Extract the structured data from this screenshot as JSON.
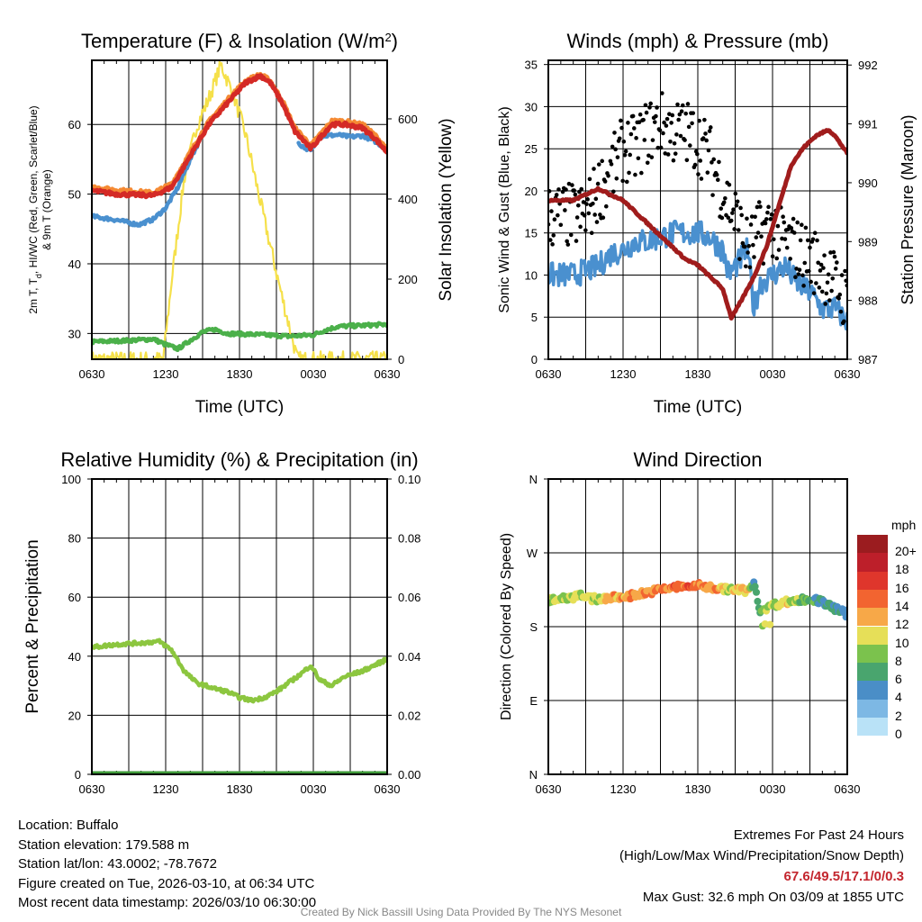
{
  "chart_data": [
    {
      "type": "line",
      "title": "Temperature (F) & Insolation (W/m",
      "title_sup": "2",
      "title_end": ")",
      "xlabel": "Time (UTC)",
      "ylabel_a": "2m T, T",
      "ylabel_sub": "d",
      "ylabel_b": ", HI/WC (Red, Green, Scarlet/Blue)",
      "ylabel_line2": "& 9m T (Orange)",
      "y2label": "Solar Insolation (Yellow)",
      "xlim": [
        0,
        24
      ],
      "xticks": [
        {
          "h": 0,
          "label": "0630"
        },
        {
          "h": 6,
          "label": "1230"
        },
        {
          "h": 12,
          "label": "1830"
        },
        {
          "h": 18,
          "label": "0030"
        },
        {
          "h": 24,
          "label": "0630"
        }
      ],
      "ylim": [
        26.3,
        69.2
      ],
      "yticks": [
        30,
        40,
        50,
        60
      ],
      "y2lim": [
        0,
        746
      ],
      "y2ticks": [
        0,
        200,
        400,
        600
      ],
      "series": [
        {
          "name": "Solar Insolation",
          "color": "#f5e04a",
          "axis": "right",
          "width": 2.2,
          "points": [
            [
              0,
              0
            ],
            [
              5.8,
              0
            ],
            [
              6.5,
              200
            ],
            [
              7.5,
              450
            ],
            [
              8.5,
              580
            ],
            [
              9.5,
              650
            ],
            [
              10.5,
              735
            ],
            [
              11.5,
              660
            ],
            [
              12.5,
              560
            ],
            [
              14,
              350
            ],
            [
              15.5,
              150
            ],
            [
              16.7,
              0
            ],
            [
              24,
              0
            ]
          ]
        },
        {
          "name": "HI/WC",
          "color": "#4bb04a",
          "axis": "left",
          "width": 4.5,
          "points": [
            [
              0,
              28.8
            ],
            [
              3,
              29
            ],
            [
              5,
              29.2
            ],
            [
              6,
              28.4
            ],
            [
              7,
              27.8
            ],
            [
              8,
              29
            ],
            [
              9,
              30.2
            ],
            [
              10,
              30.6
            ],
            [
              11,
              30
            ],
            [
              14,
              29.8
            ],
            [
              16,
              29.6
            ],
            [
              18,
              29.8
            ],
            [
              19,
              30.5
            ],
            [
              20,
              31
            ],
            [
              24,
              31.3
            ]
          ]
        },
        {
          "name": "Dewpoint",
          "color": "#4a90cf",
          "axis": "left",
          "width": 4.5,
          "points": [
            [
              0,
              46.8
            ],
            [
              2,
              46.3
            ],
            [
              3.8,
              45.6
            ],
            [
              5,
              46.4
            ],
            [
              6,
              48
            ],
            [
              7,
              51
            ],
            [
              8,
              55
            ],
            [
              8.7,
              57.5
            ]
          ],
          "points2": [
            [
              16.8,
              57.2
            ],
            [
              17.8,
              56.2
            ],
            [
              18.5,
              58.3
            ],
            [
              20,
              58.5
            ],
            [
              21,
              58.2
            ],
            [
              22,
              58.4
            ],
            [
              23,
              57.6
            ],
            [
              24,
              56.4
            ]
          ]
        },
        {
          "name": "9m Temperature",
          "color": "#f58a34",
          "axis": "left",
          "width": 4.5,
          "points": [
            [
              0,
              51
            ],
            [
              2,
              50.6
            ],
            [
              5,
              50.2
            ],
            [
              6.5,
              51.5
            ],
            [
              7.5,
              54.5
            ],
            [
              8.5,
              57.5
            ],
            [
              9.5,
              60.4
            ],
            [
              10.5,
              62.5
            ],
            [
              11.5,
              64.5
            ],
            [
              12.5,
              66.3
            ],
            [
              13.7,
              67.2
            ],
            [
              14.5,
              66.3
            ],
            [
              15.5,
              63.4
            ],
            [
              16.5,
              59.5
            ],
            [
              17.3,
              58
            ],
            [
              17.8,
              57
            ],
            [
              18.5,
              58.5
            ],
            [
              19.5,
              60.5
            ],
            [
              20.5,
              60.5
            ],
            [
              22,
              60
            ],
            [
              23,
              58.5
            ],
            [
              24,
              56.5
            ]
          ]
        },
        {
          "name": "2m Temperature",
          "color": "#d42a26",
          "axis": "left",
          "width": 5,
          "points": [
            [
              0,
              50.5
            ],
            [
              2,
              50
            ],
            [
              5,
              49.8
            ],
            [
              6.5,
              51
            ],
            [
              7.5,
              54
            ],
            [
              8.5,
              57
            ],
            [
              9.5,
              60
            ],
            [
              10.5,
              62
            ],
            [
              11.5,
              64
            ],
            [
              12.5,
              66
            ],
            [
              13.7,
              67
            ],
            [
              14.5,
              66
            ],
            [
              15.5,
              63
            ],
            [
              16.5,
              59
            ],
            [
              17.3,
              57.5
            ],
            [
              17.8,
              56.5
            ],
            [
              18.5,
              58
            ],
            [
              19.5,
              60
            ],
            [
              20.5,
              60
            ],
            [
              22,
              59.5
            ],
            [
              23,
              58
            ],
            [
              24,
              56
            ]
          ]
        }
      ]
    },
    {
      "type": "line",
      "title": "Winds (mph) & Pressure (mb)",
      "xlabel": "Time (UTC)",
      "ylabel": "Sonic Wind & Gust (Blue, Black)",
      "y2label": "Station Pressure (Maroon)",
      "xlim": [
        0,
        24
      ],
      "xticks": [
        {
          "h": 0,
          "label": "0630"
        },
        {
          "h": 6,
          "label": "1230"
        },
        {
          "h": 12,
          "label": "1830"
        },
        {
          "h": 18,
          "label": "0030"
        },
        {
          "h": 24,
          "label": "0630"
        }
      ],
      "ylim": [
        0,
        35.5
      ],
      "yticks": [
        0,
        5,
        10,
        15,
        20,
        25,
        30,
        35
      ],
      "y2lim": [
        987,
        992.08
      ],
      "y2ticks": [
        987,
        988,
        989,
        990,
        991,
        992
      ],
      "series": [
        {
          "name": "Sonic Wind",
          "color": "#4a90cf",
          "axis": "left",
          "width": 3.5,
          "points": [
            [
              0,
              10
            ],
            [
              2,
              10
            ],
            [
              3,
              10.5
            ],
            [
              4,
              11
            ],
            [
              5,
              12.5
            ],
            [
              6,
              13
            ],
            [
              7,
              14
            ],
            [
              8,
              14
            ],
            [
              9,
              14.5
            ],
            [
              10,
              15
            ],
            [
              11,
              15
            ],
            [
              12,
              15
            ],
            [
              13,
              14.5
            ],
            [
              14,
              13
            ],
            [
              14.5,
              10
            ],
            [
              15,
              11
            ],
            [
              16,
              13
            ],
            [
              16.5,
              6
            ],
            [
              17,
              9
            ],
            [
              18,
              10
            ],
            [
              19,
              11
            ],
            [
              20,
              9
            ],
            [
              21,
              8
            ],
            [
              22,
              6
            ],
            [
              23,
              6
            ],
            [
              24,
              4.5
            ]
          ]
        },
        {
          "name": "Gust",
          "color": "#000000",
          "axis": "left",
          "kind": "dots",
          "points": [
            [
              0,
              17
            ],
            [
              3,
              17
            ],
            [
              4,
              20
            ],
            [
              5,
              22
            ],
            [
              6,
              25
            ],
            [
              7,
              25
            ],
            [
              8,
              27
            ],
            [
              9,
              28
            ],
            [
              10,
              27
            ],
            [
              11,
              27
            ],
            [
              12,
              26
            ],
            [
              13,
              24
            ],
            [
              14,
              20
            ],
            [
              15,
              17
            ],
            [
              16,
              13
            ],
            [
              17,
              15
            ],
            [
              18,
              16
            ],
            [
              19,
              14
            ],
            [
              20,
              13
            ],
            [
              21,
              12
            ],
            [
              22,
              11
            ],
            [
              23,
              9
            ],
            [
              24,
              7
            ]
          ]
        },
        {
          "name": "Station Pressure",
          "color": "#a01c1c",
          "axis": "right",
          "width": 5,
          "points": [
            [
              0,
              989.7
            ],
            [
              2,
              989.7
            ],
            [
              3,
              989.8
            ],
            [
              4,
              989.9
            ],
            [
              5,
              989.8
            ],
            [
              6,
              989.7
            ],
            [
              7,
              989.5
            ],
            [
              8,
              989.3
            ],
            [
              9,
              989.1
            ],
            [
              10,
              988.9
            ],
            [
              11,
              988.7
            ],
            [
              12,
              988.6
            ],
            [
              13,
              988.4
            ],
            [
              14,
              988.2
            ],
            [
              14.7,
              987.7
            ],
            [
              15.5,
              988
            ],
            [
              16.5,
              988.4
            ],
            [
              17.5,
              988.9
            ],
            [
              18.5,
              989.6
            ],
            [
              19.5,
              990.3
            ],
            [
              20.5,
              990.6
            ],
            [
              21.5,
              990.8
            ],
            [
              22.5,
              990.9
            ],
            [
              23,
              990.8
            ],
            [
              24,
              990.5
            ]
          ]
        }
      ]
    },
    {
      "type": "line",
      "title": "Relative Humidity (%) & Precipitation (in)",
      "ylabel": "Percent & Precipitation",
      "xlim": [
        0,
        24
      ],
      "xticks": [
        {
          "h": 0,
          "label": "0630"
        },
        {
          "h": 6,
          "label": "1230"
        },
        {
          "h": 12,
          "label": "1830"
        },
        {
          "h": 18,
          "label": "0030"
        },
        {
          "h": 24,
          "label": "0630"
        }
      ],
      "ylim": [
        0,
        100
      ],
      "yticks": [
        0,
        20,
        40,
        60,
        80,
        100
      ],
      "y2lim": [
        0,
        0.1
      ],
      "y2ticks": [
        "0.00",
        "0.02",
        "0.04",
        "0.06",
        "0.08",
        "0.10"
      ],
      "series": [
        {
          "name": "Precipitation",
          "color": "#3f9a3a",
          "axis": "left",
          "width": 7,
          "points": [
            [
              0,
              0
            ],
            [
              24,
              0
            ]
          ]
        },
        {
          "name": "Relative Humidity",
          "color": "#8cc63f",
          "axis": "left",
          "width": 4.5,
          "points": [
            [
              0,
              43
            ],
            [
              2,
              44
            ],
            [
              4,
              44.5
            ],
            [
              5.5,
              45
            ],
            [
              6.5,
              42
            ],
            [
              7.5,
              35
            ],
            [
              8.5,
              31
            ],
            [
              10,
              29
            ],
            [
              11,
              28
            ],
            [
              12,
              26
            ],
            [
              13,
              25
            ],
            [
              14,
              26
            ],
            [
              15,
              28
            ],
            [
              16,
              31
            ],
            [
              17,
              34
            ],
            [
              17.8,
              37
            ],
            [
              18.5,
              32
            ],
            [
              19.5,
              30
            ],
            [
              20.5,
              33
            ],
            [
              22,
              35
            ],
            [
              24,
              39
            ]
          ]
        }
      ]
    },
    {
      "type": "scatter",
      "title": "Wind Direction",
      "ylabel": "Direction (Colored By Speed)",
      "xlim": [
        0,
        24
      ],
      "xticks": [
        {
          "h": 0,
          "label": "0630"
        },
        {
          "h": 6,
          "label": "1230"
        },
        {
          "h": 12,
          "label": "1830"
        },
        {
          "h": 18,
          "label": "0030"
        },
        {
          "h": 24,
          "label": "0630"
        }
      ],
      "ylim": [
        0,
        360
      ],
      "yticks": [
        {
          "v": 0,
          "label": "N"
        },
        {
          "v": 90,
          "label": "E"
        },
        {
          "v": 180,
          "label": "S"
        },
        {
          "v": 270,
          "label": "W"
        },
        {
          "v": 360,
          "label": "N"
        }
      ],
      "direction_points": [
        [
          0,
          212
        ],
        [
          1,
          215
        ],
        [
          2,
          216
        ],
        [
          2.5,
          222
        ],
        [
          3,
          214
        ],
        [
          4,
          214
        ],
        [
          6,
          216
        ],
        [
          8,
          222
        ],
        [
          10,
          228
        ],
        [
          12,
          230
        ],
        [
          14,
          226
        ],
        [
          16,
          224
        ],
        [
          16.5,
          232
        ],
        [
          17,
          200
        ],
        [
          18,
          206
        ],
        [
          19,
          210
        ],
        [
          20,
          212
        ],
        [
          21,
          214
        ],
        [
          22,
          210
        ],
        [
          23,
          202
        ],
        [
          24,
          195
        ]
      ],
      "legend": {
        "title": "mph",
        "labels": [
          "20+",
          "18",
          "16",
          "14",
          "12",
          "10",
          "8",
          "6",
          "4",
          "2",
          "0"
        ],
        "colors": [
          "#9b1c1f",
          "#bd1f2a",
          "#df362c",
          "#f26430",
          "#f7a848",
          "#e6df58",
          "#7bc24d",
          "#49a56e",
          "#4a8ec7",
          "#7db8e4",
          "#b9e2f7"
        ]
      }
    }
  ],
  "info": {
    "location": "Location: Buffalo",
    "elevation": "Station elevation: 179.588 m",
    "latlon": "Station lat/lon: 43.0002; -78.7672",
    "created": "Figure created on Tue, 2026-03-10, at 06:34 UTC",
    "recent": "Most recent data timestamp: 2026/03/10 06:30:00"
  },
  "extremes": {
    "title": "Extremes For Past 24 Hours",
    "subtitle": "(High/Low/Max Wind/Precipitation/Snow Depth)",
    "values": "67.6/49.5/17.1/0/0.3",
    "max_gust": "Max Gust: 32.6 mph On 03/09 at 1855 UTC"
  },
  "credit": "Created By Nick Bassill Using Data Provided By The NYS Mesonet"
}
